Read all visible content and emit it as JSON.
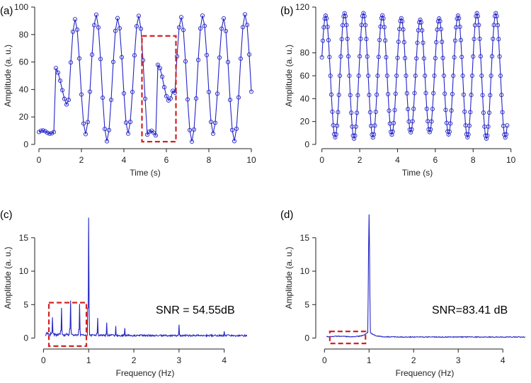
{
  "chart_data": [
    {
      "type": "line",
      "panel_label": "(a)",
      "xlabel": "Time (s)",
      "ylabel": "Amplitude (a. u.)",
      "xlim": [
        0,
        10
      ],
      "ylim": [
        0,
        100
      ],
      "xticks": [
        0,
        2,
        4,
        6,
        8,
        10
      ],
      "yticks": [
        0,
        20,
        40,
        60,
        80,
        100
      ],
      "signal": {
        "kind": "time_a",
        "start": 0,
        "end": 10,
        "step": 0.1
      },
      "highlight_box": {
        "x": [
          4.85,
          6.45
        ],
        "y": [
          2,
          79
        ],
        "color": "#d22222"
      },
      "series_color": "#2424c8",
      "markers": true
    },
    {
      "type": "line",
      "panel_label": "(b)",
      "xlabel": "Time (s)",
      "ylabel": "Amplitude (a. u.)",
      "xlim": [
        -0.1,
        10.2
      ],
      "ylim": [
        0,
        120
      ],
      "xticks": [
        0,
        2,
        4,
        6,
        8,
        10
      ],
      "yticks": [
        0,
        20,
        40,
        60,
        80,
        120
      ],
      "signal": {
        "kind": "time_b",
        "start": 0,
        "end": 9.8,
        "step": 0.05
      },
      "series_color": "#2424c8",
      "markers": true
    },
    {
      "type": "line",
      "panel_label": "(c)",
      "xlabel": "Frequency (Hz)",
      "ylabel": "Amplitude (a. u.)",
      "xlim": [
        -0.1,
        4.6
      ],
      "ylim": [
        -1,
        19
      ],
      "xticks": [
        0,
        1,
        2,
        3,
        4
      ],
      "yticks": [
        0,
        5,
        10,
        15
      ],
      "signal": {
        "kind": "freq_c",
        "start": 0.05,
        "end": 4.5,
        "step": 0.01
      },
      "peaks": [
        {
          "f": 1.0,
          "a": 18
        },
        {
          "f": 0.6,
          "a": 5.6
        },
        {
          "f": 0.4,
          "a": 4.5
        },
        {
          "f": 0.8,
          "a": 5.1
        },
        {
          "f": 0.2,
          "a": 3.1
        },
        {
          "f": 1.2,
          "a": 3.0
        },
        {
          "f": 1.4,
          "a": 2.3
        },
        {
          "f": 1.6,
          "a": 1.8
        },
        {
          "f": 1.8,
          "a": 1.5
        },
        {
          "f": 3.0,
          "a": 2.0
        },
        {
          "f": 4.0,
          "a": 1.0
        }
      ],
      "annotation": "SNR = 54.55dB",
      "highlight_box": {
        "x": [
          0.12,
          0.95
        ],
        "y": [
          -1.2,
          5.3
        ],
        "color": "#d22222"
      },
      "series_color": "#2424c8",
      "markers": false
    },
    {
      "type": "line",
      "panel_label": "(d)",
      "xlabel": "Frequency (Hz)",
      "ylabel": "Amplitude (a. u.)",
      "xlim": [
        -0.1,
        4.6
      ],
      "ylim": [
        -1,
        19
      ],
      "xticks": [
        0,
        1,
        2,
        3,
        4
      ],
      "yticks": [
        0,
        5,
        10,
        15
      ],
      "signal": {
        "kind": "freq_d",
        "start": 0.05,
        "end": 4.5,
        "step": 0.01
      },
      "peaks": [
        {
          "f": 1.0,
          "a": 18.5
        }
      ],
      "annotation": "SNR=83.41 dB",
      "highlight_box": {
        "x": [
          0.12,
          0.92
        ],
        "y": [
          -0.8,
          1.0
        ],
        "color": "#d22222"
      },
      "series_color": "#2424c8",
      "markers": false
    }
  ]
}
